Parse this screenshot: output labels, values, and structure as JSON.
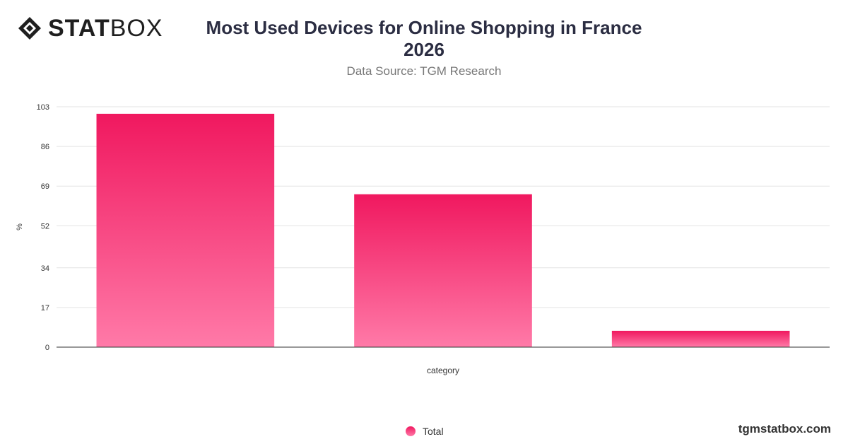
{
  "header": {
    "logo_text_bold": "STAT",
    "logo_text_light": "BOX",
    "title_line1": "Most Used Devices for Online Shopping in France",
    "title_line2": "2026",
    "subtitle": "Data Source: TGM Research"
  },
  "footer": {
    "brand_url": "tgmstatbox.com"
  },
  "colors": {
    "bar_top": "#f0185f",
    "bar_bottom": "#ff7aa8",
    "grid": "#e3e3e3",
    "axis": "#333333"
  },
  "chart_data": {
    "type": "bar",
    "categories": [
      "",
      "",
      ""
    ],
    "series": [
      {
        "name": "Total",
        "values": [
          100,
          65.5,
          7
        ]
      }
    ],
    "xlabel": "category",
    "ylabel": "%",
    "yticks": [
      0,
      17,
      34,
      52,
      69,
      86,
      103
    ],
    "ylim": [
      0,
      103
    ],
    "grid": true,
    "legend": "bottom-center"
  }
}
